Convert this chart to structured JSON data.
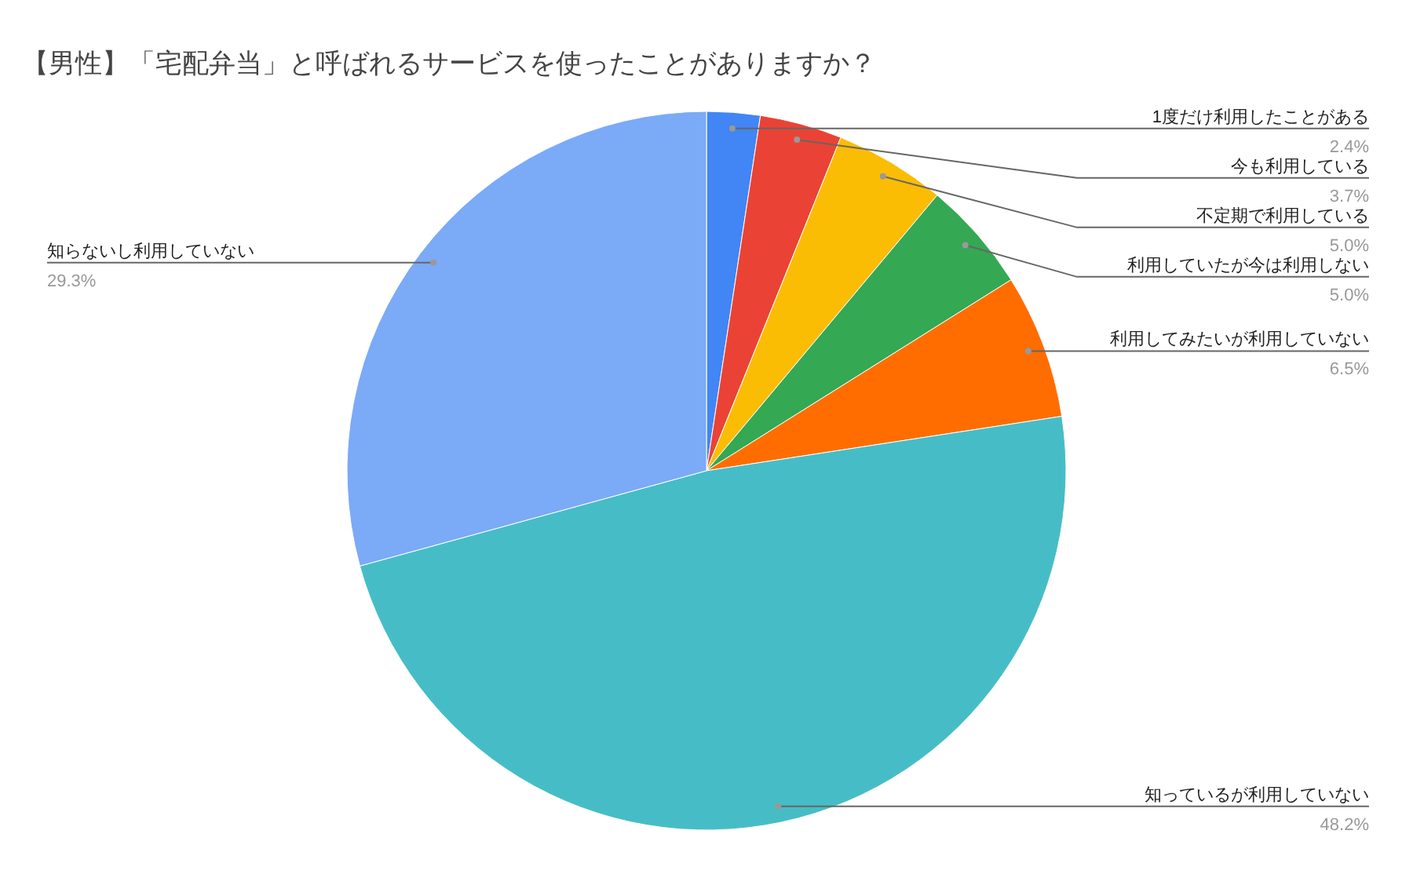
{
  "chart_data": {
    "type": "pie",
    "title": "【男性】「宅配弁当」と呼ばれるサービスを使ったことがありますか？",
    "categories": [
      "1度だけ利用したことがある",
      "今も利用している",
      "不定期で利用している",
      "利用していたが今は利用しない",
      "利用してみたいが利用していない",
      "知っているが利用していない",
      "知らないし利用していない"
    ],
    "values": [
      2.4,
      3.7,
      5.0,
      5.0,
      6.5,
      48.2,
      29.3
    ],
    "value_labels": [
      "2.4%",
      "3.7%",
      "5.0%",
      "5.0%",
      "6.5%",
      "48.2%",
      "29.3%"
    ],
    "colors": [
      "#4285f4",
      "#ea4335",
      "#fbbc04",
      "#34a853",
      "#ff6d01",
      "#46bdc6",
      "#7baaf7"
    ]
  }
}
